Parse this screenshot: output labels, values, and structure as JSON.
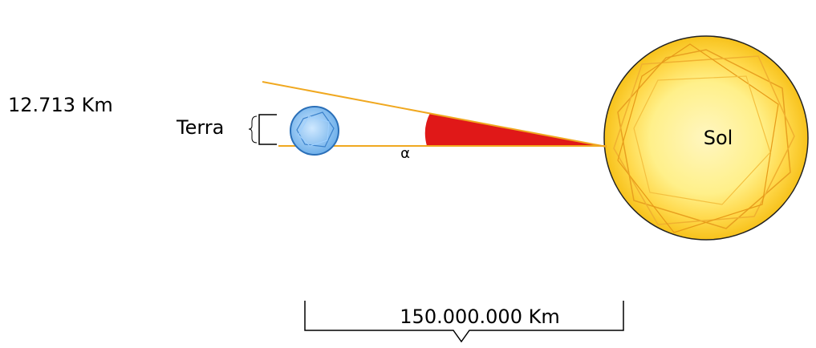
{
  "labels": {
    "earth_diameter": "12.713 Km",
    "earth": "Terra",
    "angle": "α",
    "sun": "Sol",
    "distance": "150.000.000 Km"
  }
}
